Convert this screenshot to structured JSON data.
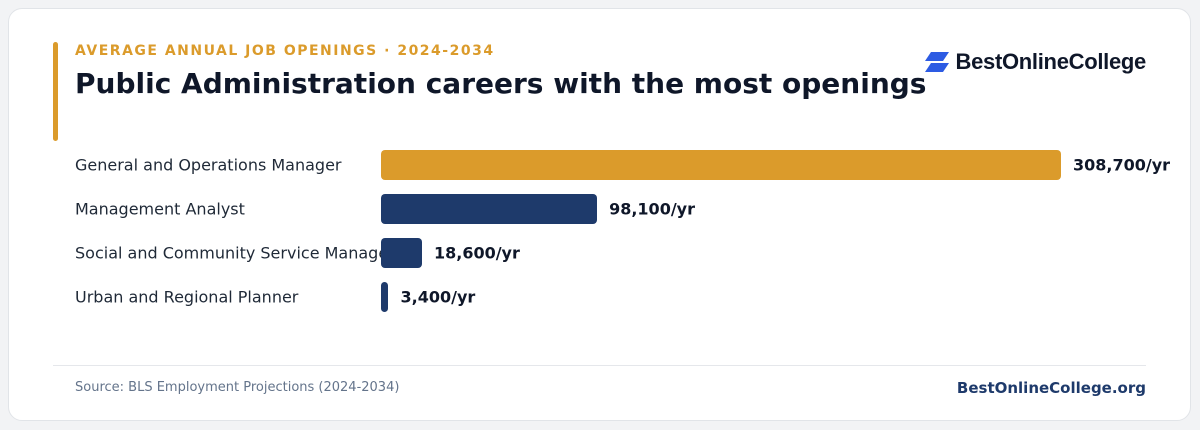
{
  "header": {
    "eyebrow": "AVERAGE ANNUAL JOB OPENINGS · 2024-2034",
    "title": "Public Administration careers with the most openings"
  },
  "brand": {
    "name": "BestOnlineCollege",
    "icon": "brand-logo-icon",
    "icon_color": "#2d5be3"
  },
  "colors": {
    "highlight": "#db9b2b",
    "bar": "#1e3a6b",
    "accent": "#db9b2b"
  },
  "chart_data": {
    "type": "bar",
    "orientation": "horizontal",
    "title": "Public Administration careers with the most openings",
    "subtitle": "AVERAGE ANNUAL JOB OPENINGS · 2024-2034",
    "categories": [
      "General and Operations Manager",
      "Management Analyst",
      "Social and Community Service Manager",
      "Urban and Regional Planner"
    ],
    "values": [
      308700,
      98100,
      18600,
      3400
    ],
    "value_labels": [
      "308,700/yr",
      "98,100/yr",
      "18,600/yr",
      "3,400/yr"
    ],
    "highlight_index": 0,
    "xlim": [
      0,
      308700
    ],
    "grid": false,
    "legend": "none"
  },
  "footer": {
    "source": "Source: BLS Employment Projections (2024-2034)",
    "site": "BestOnlineCollege.org"
  }
}
